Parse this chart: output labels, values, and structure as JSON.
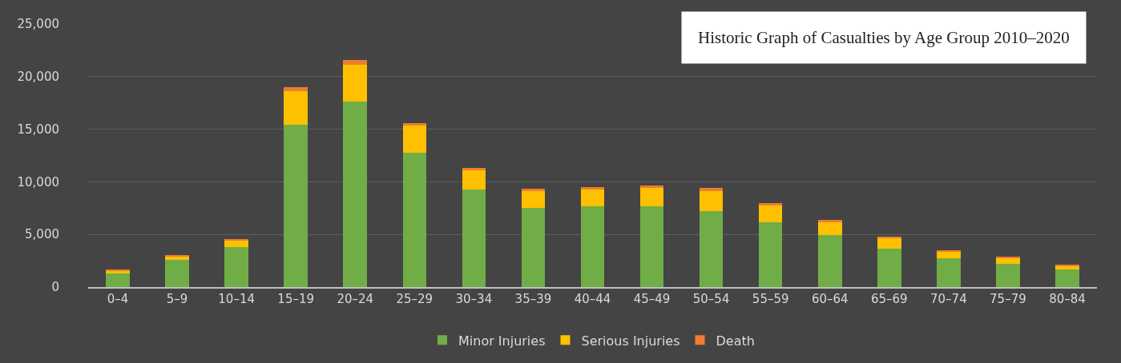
{
  "chart_data": {
    "type": "bar",
    "title": "Historic Graph of Casualties by Age Group 2010–2020",
    "stacked": true,
    "categories": [
      "0–4",
      "5–9",
      "10–14",
      "15–19",
      "20–24",
      "25–29",
      "30–34",
      "35–39",
      "40–44",
      "45–49",
      "50–54",
      "55–59",
      "60–64",
      "65–69",
      "70–74",
      "75–79",
      "80–84"
    ],
    "series": [
      {
        "name": "Minor Injuries",
        "color": "#70ad47",
        "values": [
          1300,
          2550,
          3800,
          15450,
          17600,
          12800,
          9250,
          7550,
          7650,
          7650,
          7250,
          6150,
          4950,
          3650,
          2750,
          2200,
          1650
        ]
      },
      {
        "name": "Serious Injuries",
        "color": "#ffc000",
        "values": [
          250,
          400,
          650,
          3200,
          3500,
          2550,
          1850,
          1600,
          1600,
          1800,
          1900,
          1600,
          1200,
          1000,
          650,
          550,
          400
        ]
      },
      {
        "name": "Death",
        "color": "#ed7d31",
        "values": [
          50,
          50,
          50,
          350,
          450,
          250,
          250,
          200,
          250,
          200,
          250,
          250,
          200,
          150,
          100,
          100,
          100
        ]
      }
    ],
    "ylim": [
      0,
      25000
    ],
    "yticks": [
      {
        "value": 0,
        "label": "0"
      },
      {
        "value": 5000,
        "label": "5,000"
      },
      {
        "value": 10000,
        "label": "10,000"
      },
      {
        "value": 15000,
        "label": "15,000"
      },
      {
        "value": 20000,
        "label": "20,000"
      },
      {
        "value": 25000,
        "label": "25,000"
      }
    ],
    "grid": "y",
    "legend": "bottom"
  }
}
